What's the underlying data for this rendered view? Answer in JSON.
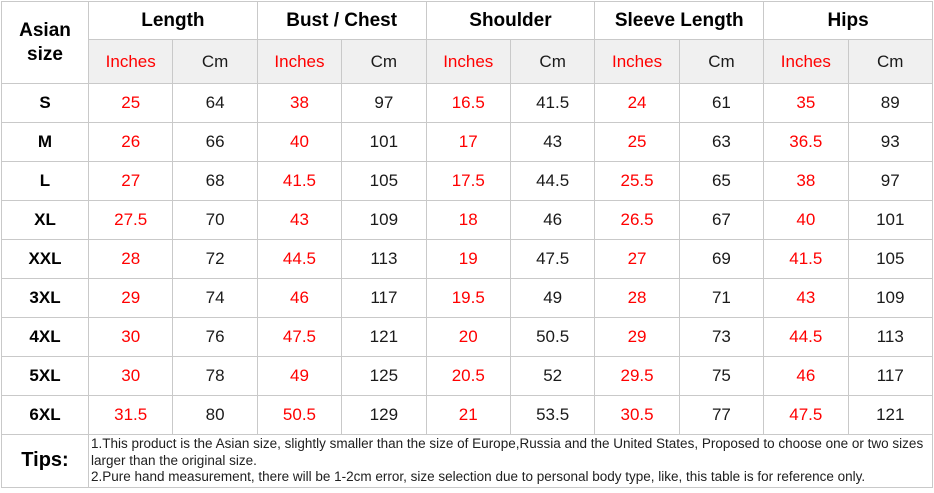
{
  "chart_data": {
    "type": "table",
    "corner_header": "Asian size",
    "column_groups": [
      "Length",
      "Bust / Chest",
      "Shoulder",
      "Sleeve Length",
      "Hips"
    ],
    "unit_columns": [
      "Inches",
      "Cm"
    ],
    "sizes": [
      "S",
      "M",
      "L",
      "XL",
      "XXL",
      "3XL",
      "4XL",
      "5XL",
      "6XL"
    ],
    "rows": [
      [
        25,
        64,
        38,
        97,
        16.5,
        41.5,
        24,
        61,
        35,
        89
      ],
      [
        26,
        66,
        40,
        101,
        17,
        43,
        25,
        63,
        36.5,
        93
      ],
      [
        27,
        68,
        41.5,
        105,
        17.5,
        44.5,
        25.5,
        65,
        38,
        97
      ],
      [
        27.5,
        70,
        43,
        109,
        18,
        46,
        26.5,
        67,
        40,
        101
      ],
      [
        28,
        72,
        44.5,
        113,
        19,
        47.5,
        27,
        69,
        41.5,
        105
      ],
      [
        29,
        74,
        46,
        117,
        19.5,
        49,
        28,
        71,
        43,
        109
      ],
      [
        30,
        76,
        47.5,
        121,
        20,
        50.5,
        29,
        73,
        44.5,
        113
      ],
      [
        30,
        78,
        49,
        125,
        20.5,
        52,
        29.5,
        75,
        46,
        117
      ],
      [
        31.5,
        80,
        50.5,
        129,
        21,
        53.5,
        30.5,
        77,
        47.5,
        121
      ]
    ]
  },
  "tips": {
    "label": "Tips:",
    "items": [
      "1.This product is the Asian size, slightly smaller than the size of Europe,Russia and the United States, Proposed to choose one or two sizes larger than the original size.",
      "2.Pure hand measurement, there will be 1-2cm error, size selection due to personal body type, like, this table is for reference only."
    ]
  },
  "colors": {
    "inches_text": "#ff0000",
    "number_text": "#1a1a1a",
    "unit_row_bg": "#f0f0f0",
    "border": "#c9c9c9"
  }
}
